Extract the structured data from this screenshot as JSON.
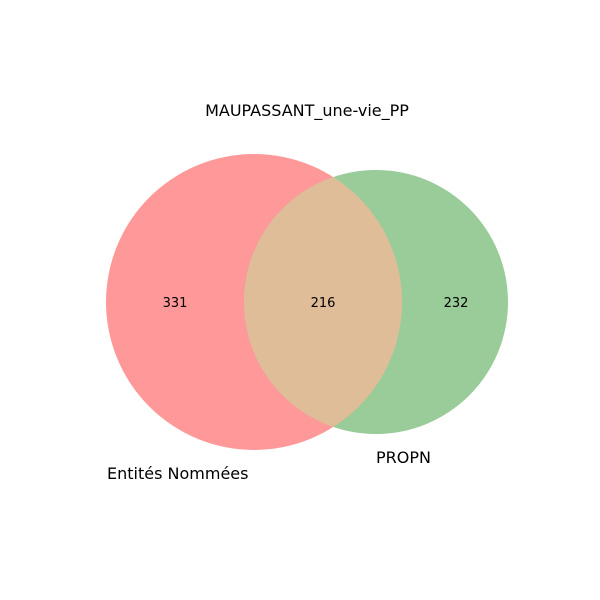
{
  "chart_data": {
    "type": "venn",
    "title": "MAUPASSANT_une-vie_PP",
    "sets": [
      {
        "name": "Entités Nommées",
        "only": 331,
        "color": "#ff9999"
      },
      {
        "name": "PROPN",
        "only": 232,
        "color": "#99cc99"
      }
    ],
    "intersection": 216,
    "intersection_color": "#e0bd99"
  }
}
